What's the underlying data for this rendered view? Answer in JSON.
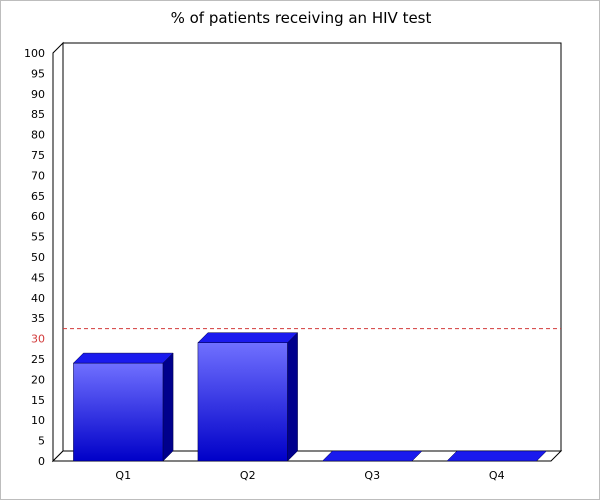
{
  "chart_data": {
    "type": "bar",
    "title": "% of patients receiving an HIV test",
    "categories": [
      "Q1",
      "Q2",
      "Q3",
      "Q4"
    ],
    "values": [
      24,
      29,
      0,
      0
    ],
    "ylim": [
      0,
      100
    ],
    "ytick_step": 5,
    "xlabel": "",
    "ylabel": "",
    "target_line": {
      "value": 30,
      "color": "#d23a3a",
      "style": "dashed"
    },
    "colors": {
      "bar_top": "#7070ff",
      "bar_bottom": "#0000c8",
      "bar_side": "#00008c",
      "bar_cap": "#1a1aee"
    },
    "grid": false,
    "legend": "none"
  }
}
